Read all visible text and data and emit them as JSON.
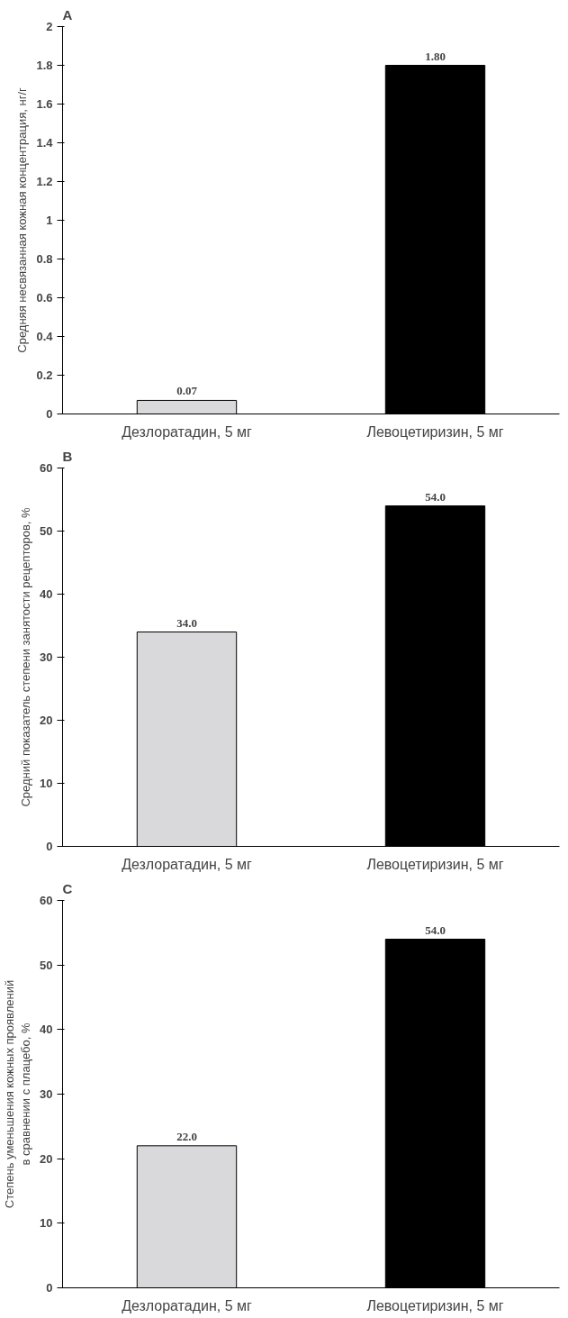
{
  "chart_data": [
    {
      "type": "bar",
      "title": "A",
      "ylabel": "Средняя несвязанная кожная концентрация, нг/г",
      "categories": [
        "Дезлоратадин, 5 мг",
        "Левоцетиризин, 5 мг"
      ],
      "values": [
        0.07,
        1.8
      ],
      "value_labels": [
        "0.07",
        "1.80"
      ],
      "colors": [
        "#d9d9db",
        "#000000"
      ],
      "ylim": [
        0,
        2
      ],
      "yticks": [
        0,
        {
          "value": 0.2,
          "label": "0.2"
        },
        {
          "value": 0.4,
          "label": "0.4"
        },
        {
          "value": 0.6,
          "label": "0.6"
        },
        {
          "value": 0.8,
          "label": "0.8"
        },
        1,
        {
          "value": 1.2,
          "label": "1.2"
        },
        {
          "value": 1.4,
          "label": "1.4"
        },
        {
          "value": 1.6,
          "label": "1.6"
        },
        {
          "value": 1.8,
          "label": "1.8"
        },
        2
      ],
      "grid": false
    },
    {
      "type": "bar",
      "title": "B",
      "ylabel": "Средний показатель степени занятости рецепторов, %",
      "categories": [
        "Дезлоратадин, 5 мг",
        "Левоцетиризин, 5 мг"
      ],
      "values": [
        34,
        54
      ],
      "value_labels": [
        "34.0",
        "54.0"
      ],
      "colors": [
        "#d9d9db",
        "#000000"
      ],
      "ylim": [
        0,
        60
      ],
      "yticks": [
        0,
        10,
        20,
        30,
        40,
        50,
        60
      ],
      "grid": false
    },
    {
      "type": "bar",
      "title": "C",
      "ylabel": "Степень уменьшения кожных проявлений\nв сравнении с плацебо, %",
      "categories": [
        "Дезлоратадин, 5 мг",
        "Левоцетиризин, 5 мг"
      ],
      "values": [
        22,
        54
      ],
      "value_labels": [
        "22.0",
        "54.0"
      ],
      "colors": [
        "#d9d9db",
        "#000000"
      ],
      "ylim": [
        0,
        60
      ],
      "yticks": [
        0,
        10,
        20,
        30,
        40,
        50,
        60
      ],
      "grid": false
    }
  ]
}
